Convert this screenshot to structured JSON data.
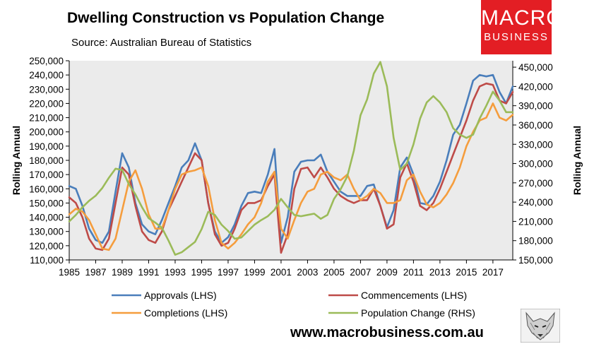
{
  "header": {
    "title": "Dwelling Construction vs Population Change",
    "subtitle": "Source: Australian Bureau of Statistics"
  },
  "logo": {
    "line1": "MACRO",
    "line2": "BUSINESS",
    "color": "#e31e24"
  },
  "footer": {
    "url": "www.macrobusiness.com.au"
  },
  "wolf_icon": "wolf-logo-icon",
  "chart_data": {
    "type": "line",
    "title": "Dwelling Construction vs Population Change",
    "ylabel_left": "Rolling Annual",
    "ylabel_right": "Rolling Annual",
    "xlabel": "",
    "grid": "none",
    "background": "#ebebeb",
    "legend_position": "bottom",
    "x_ticks": [
      "1985",
      "1987",
      "1989",
      "1991",
      "1993",
      "1995",
      "1997",
      "1999",
      "2001",
      "2003",
      "2005",
      "2007",
      "2009",
      "2011",
      "2013",
      "2015",
      "2017"
    ],
    "xlim": [
      1985,
      2018.5
    ],
    "ylim_left": [
      110000,
      250000
    ],
    "ylim_right": [
      150000,
      460000
    ],
    "y_ticks_left": [
      "110,000",
      "120,000",
      "130,000",
      "140,000",
      "150,000",
      "160,000",
      "170,000",
      "180,000",
      "190,000",
      "200,000",
      "210,000",
      "220,000",
      "230,000",
      "240,000",
      "250,000"
    ],
    "y_ticks_right": [
      "150,000",
      "180,000",
      "210,000",
      "240,000",
      "270,000",
      "300,000",
      "330,000",
      "360,000",
      "390,000",
      "420,000",
      "450,000"
    ],
    "series": [
      {
        "name": "Approvals (LHS)",
        "axis": "left",
        "color": "#4a7ebb",
        "x": [
          1985,
          1985.5,
          1986,
          1986.5,
          1987,
          1987.5,
          1988,
          1988.5,
          1989,
          1989.5,
          1990,
          1990.5,
          1991,
          1991.5,
          1992,
          1992.5,
          1993,
          1993.5,
          1994,
          1994.5,
          1995,
          1995.5,
          1996,
          1996.5,
          1997,
          1997.5,
          1998,
          1998.5,
          1999,
          1999.5,
          2000,
          2000.5,
          2001,
          2001.5,
          2002,
          2002.5,
          2003,
          2003.5,
          2004,
          2004.5,
          2005,
          2005.5,
          2006,
          2006.5,
          2007,
          2007.5,
          2008,
          2008.5,
          2009,
          2009.5,
          2010,
          2010.5,
          2011,
          2011.5,
          2012,
          2012.5,
          2013,
          2013.5,
          2014,
          2014.5,
          2015,
          2015.5,
          2016,
          2016.5,
          2017,
          2017.5,
          2018,
          2018.5
        ],
        "values": [
          162000,
          160000,
          148000,
          132000,
          124000,
          122000,
          130000,
          158000,
          185000,
          175000,
          150000,
          135000,
          130000,
          128000,
          138000,
          150000,
          162000,
          175000,
          180000,
          192000,
          180000,
          150000,
          130000,
          122000,
          126000,
          135000,
          148000,
          157000,
          158000,
          157000,
          170000,
          188000,
          122000,
          140000,
          172000,
          179000,
          180000,
          180000,
          184000,
          172000,
          165000,
          158000,
          155000,
          155000,
          155000,
          162000,
          163000,
          148000,
          133000,
          145000,
          175000,
          182000,
          170000,
          150000,
          149000,
          155000,
          165000,
          180000,
          198000,
          205000,
          220000,
          236000,
          240000,
          239000,
          240000,
          228000,
          220000,
          232000
        ]
      },
      {
        "name": "Commencements (LHS)",
        "axis": "left",
        "color": "#be4b48",
        "x": [
          1985,
          1985.5,
          1986,
          1986.5,
          1987,
          1987.5,
          1988,
          1988.5,
          1989,
          1989.5,
          1990,
          1990.5,
          1991,
          1991.5,
          1992,
          1992.5,
          1993,
          1993.5,
          1994,
          1994.5,
          1995,
          1995.5,
          1996,
          1996.5,
          1997,
          1997.5,
          1998,
          1998.5,
          1999,
          1999.5,
          2000,
          2000.5,
          2001,
          2001.5,
          2002,
          2002.5,
          2003,
          2003.5,
          2004,
          2004.5,
          2005,
          2005.5,
          2006,
          2006.5,
          2007,
          2007.5,
          2008,
          2008.5,
          2009,
          2009.5,
          2010,
          2010.5,
          2011,
          2011.5,
          2012,
          2012.5,
          2013,
          2013.5,
          2014,
          2014.5,
          2015,
          2015.5,
          2016,
          2016.5,
          2017,
          2017.5,
          2018,
          2018.5
        ],
        "values": [
          154000,
          150000,
          140000,
          125000,
          118000,
          117000,
          125000,
          150000,
          175000,
          170000,
          148000,
          130000,
          124000,
          122000,
          130000,
          145000,
          155000,
          165000,
          175000,
          185000,
          180000,
          150000,
          128000,
          120000,
          122000,
          132000,
          145000,
          150000,
          150000,
          152000,
          162000,
          170000,
          115000,
          128000,
          160000,
          174000,
          175000,
          168000,
          175000,
          168000,
          160000,
          155000,
          152000,
          150000,
          152000,
          152000,
          160000,
          148000,
          132000,
          135000,
          168000,
          178000,
          165000,
          148000,
          145000,
          150000,
          160000,
          172000,
          184000,
          196000,
          208000,
          222000,
          232000,
          234000,
          233000,
          222000,
          220000,
          228000
        ]
      },
      {
        "name": "Completions (LHS)",
        "axis": "left",
        "color": "#f59d3d",
        "x": [
          1985,
          1985.5,
          1986,
          1986.5,
          1987,
          1987.5,
          1988,
          1988.5,
          1989,
          1989.5,
          1990,
          1990.5,
          1991,
          1991.5,
          1992,
          1992.5,
          1993,
          1993.5,
          1994,
          1994.5,
          1995,
          1995.5,
          1996,
          1996.5,
          1997,
          1997.5,
          1998,
          1998.5,
          1999,
          1999.5,
          2000,
          2000.5,
          2001,
          2001.5,
          2002,
          2002.5,
          2003,
          2003.5,
          2004,
          2004.5,
          2005,
          2005.5,
          2006,
          2006.5,
          2007,
          2007.5,
          2008,
          2008.5,
          2009,
          2009.5,
          2010,
          2010.5,
          2011,
          2011.5,
          2012,
          2012.5,
          2013,
          2013.5,
          2014,
          2014.5,
          2015,
          2015.5,
          2016,
          2016.5,
          2017,
          2017.5,
          2018,
          2018.5
        ],
        "values": [
          142000,
          146000,
          144000,
          138000,
          128000,
          118000,
          117000,
          125000,
          145000,
          165000,
          173000,
          160000,
          142000,
          132000,
          132000,
          145000,
          160000,
          170000,
          172000,
          173000,
          175000,
          162000,
          138000,
          122000,
          118000,
          122000,
          128000,
          135000,
          140000,
          150000,
          165000,
          172000,
          132000,
          125000,
          138000,
          150000,
          158000,
          160000,
          170000,
          172000,
          168000,
          166000,
          170000,
          160000,
          152000,
          155000,
          160000,
          157000,
          150000,
          150000,
          152000,
          166000,
          170000,
          158000,
          149000,
          147000,
          150000,
          156000,
          164000,
          175000,
          190000,
          200000,
          208000,
          210000,
          220000,
          210000,
          208000,
          212000
        ]
      },
      {
        "name": "Population Change (RHS)",
        "axis": "right",
        "color": "#9bbb59",
        "x": [
          1985,
          1985.5,
          1986,
          1986.5,
          1987,
          1987.5,
          1988,
          1988.5,
          1989,
          1989.5,
          1990,
          1990.5,
          1991,
          1991.5,
          1992,
          1992.5,
          1993,
          1993.5,
          1994,
          1994.5,
          1995,
          1995.5,
          1996,
          1996.5,
          1997,
          1997.5,
          1998,
          1998.5,
          1999,
          1999.5,
          2000,
          2000.5,
          2001,
          2001.5,
          2002,
          2002.5,
          2003,
          2003.5,
          2004,
          2004.5,
          2005,
          2005.5,
          2006,
          2006.5,
          2007,
          2007.5,
          2008,
          2008.5,
          2009,
          2009.5,
          2010,
          2010.5,
          2011,
          2011.5,
          2012,
          2012.5,
          2013,
          2013.5,
          2014,
          2014.5,
          2015,
          2015.5,
          2016,
          2016.5,
          2017,
          2017.5,
          2018,
          2018.5
        ],
        "values": [
          210000,
          220000,
          232000,
          242000,
          250000,
          262000,
          278000,
          292000,
          290000,
          268000,
          252000,
          232000,
          215000,
          208000,
          200000,
          180000,
          158000,
          162000,
          170000,
          178000,
          198000,
          225000,
          220000,
          205000,
          195000,
          183000,
          185000,
          195000,
          205000,
          212000,
          218000,
          228000,
          245000,
          232000,
          220000,
          218000,
          220000,
          222000,
          214000,
          220000,
          245000,
          260000,
          280000,
          320000,
          375000,
          400000,
          440000,
          458000,
          420000,
          340000,
          290000,
          300000,
          330000,
          370000,
          395000,
          405000,
          395000,
          380000,
          355000,
          345000,
          340000,
          345000,
          370000,
          390000,
          412000,
          398000,
          380000,
          380000
        ]
      }
    ]
  }
}
